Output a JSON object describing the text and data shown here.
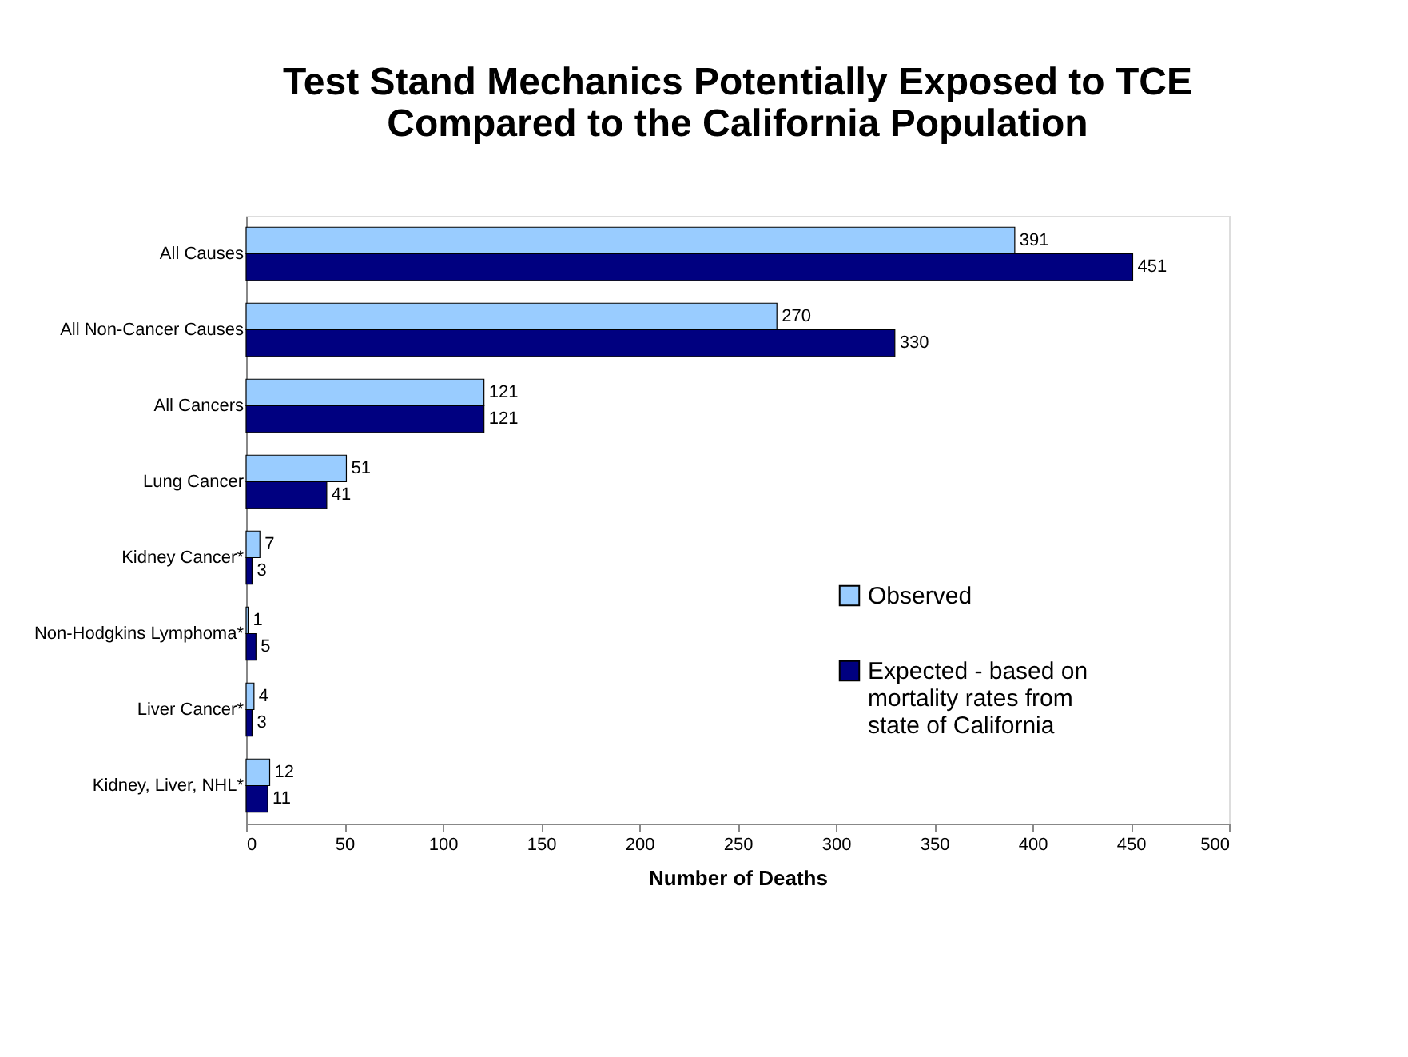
{
  "chart_data": {
    "type": "bar",
    "orientation": "horizontal",
    "title": [
      "Test Stand Mechanics Potentially Exposed to TCE",
      "Compared to the California Population"
    ],
    "xlabel": "Number of Deaths",
    "categories": [
      "All Causes",
      "All Non-Cancer Causes",
      "All Cancers",
      "Lung Cancer",
      "Kidney Cancer*",
      "Non-Hodgkins Lymphoma*",
      "Liver Cancer*",
      "Kidney, Liver, NHL*"
    ],
    "series": [
      {
        "name": "Observed",
        "color": "#99ccff",
        "values": [
          391,
          270,
          121,
          51,
          7,
          1,
          4,
          12
        ]
      },
      {
        "name": "Expected - based on mortality rates from state of California",
        "color": "#000080",
        "values": [
          451,
          330,
          121,
          41,
          3,
          5,
          3,
          11
        ]
      }
    ],
    "xlim": [
      0,
      500
    ],
    "xticks": [
      0,
      50,
      100,
      150,
      200,
      250,
      300,
      350,
      400,
      450,
      500
    ],
    "grid": false,
    "legend": "right",
    "data_labels": true
  }
}
